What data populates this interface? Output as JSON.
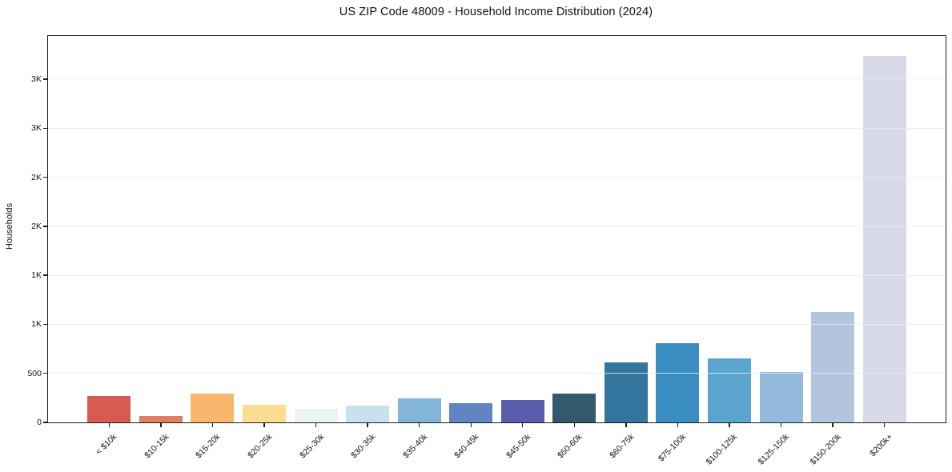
{
  "chart_data": {
    "type": "bar",
    "title": "US ZIP Code 48009 - Household Income Distribution (2024)",
    "xlabel": "",
    "ylabel": "Households",
    "legend": "none",
    "grid": "horizontal",
    "ylim": [
      0,
      3940
    ],
    "yticks": {
      "values": [
        0,
        500,
        1000,
        1500,
        2000,
        2500,
        3000,
        3500
      ],
      "labels": [
        "0",
        "500",
        "1K",
        "1K",
        "2K",
        "2K",
        "3K",
        "3K"
      ]
    },
    "categories": [
      "< $10k",
      "$10-15k",
      "$15-20k",
      "$20-25k",
      "$25-30k",
      "$30-35k",
      "$35-40k",
      "$40-45k",
      "$45-50k",
      "$50-60k",
      "$60-75k",
      "$75-100k",
      "$100-125k",
      "$125-150k",
      "$150-200k",
      "$200k+"
    ],
    "values": [
      270,
      65,
      290,
      180,
      140,
      175,
      245,
      195,
      225,
      290,
      615,
      810,
      655,
      515,
      1125,
      3740
    ],
    "bar_colors": [
      "#d75b53",
      "#e0805f",
      "#f9b76e",
      "#fbdd91",
      "#ecf3f5",
      "#c7e1ee",
      "#83b4d9",
      "#6185c3",
      "#5a5dab",
      "#34596d",
      "#33759c",
      "#3a8ec2",
      "#5ba4cd",
      "#93bada",
      "#b3c4de",
      "#d8dae8"
    ],
    "axis_color": "#1b1b1b",
    "gridline_color": "#e9e9f1",
    "background_color": "#ffffff"
  }
}
